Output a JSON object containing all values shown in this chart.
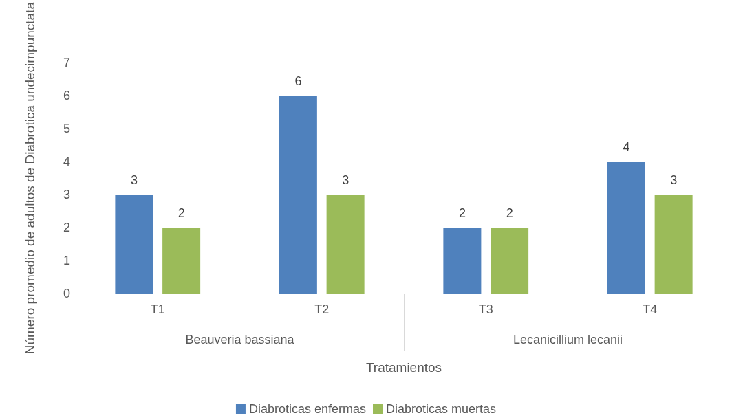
{
  "chart_data": {
    "type": "bar",
    "xlabel": "Tratamientos",
    "ylabel": "Número promedio de adultos de Diabrotica undecimpunctata",
    "categories": [
      "T1",
      "T2",
      "T3",
      "T4"
    ],
    "annotations": [
      "Beauveria bassiana",
      "Lecanicillium lecanii"
    ],
    "series": [
      {
        "name": "Diabroticas enfermas",
        "color": "#4f81bd",
        "values": [
          3,
          6,
          2,
          4
        ]
      },
      {
        "name": "Diabroticas muertas",
        "color": "#9bbb59",
        "values": [
          2,
          3,
          2,
          3
        ]
      }
    ],
    "ylim": [
      0,
      7
    ],
    "yticks": [
      0,
      1,
      2,
      3,
      4,
      5,
      6,
      7
    ],
    "grid": "y",
    "legend": "bottom",
    "data_labels": true
  }
}
